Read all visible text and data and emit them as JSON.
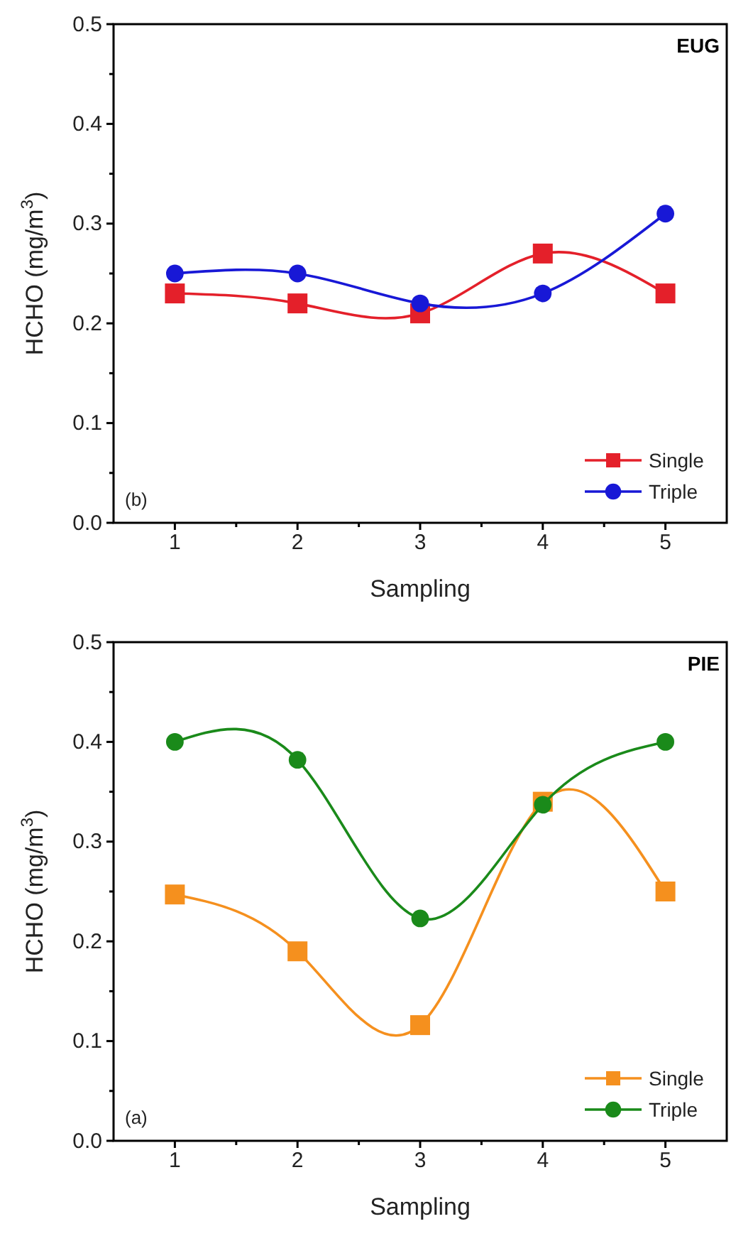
{
  "chart_data": [
    {
      "type": "line",
      "title": "EUG",
      "xlabel": "Sampling",
      "ylabel": "HCHO (mg/m$^{3}$)",
      "annotations": [
        "(b)"
      ],
      "x": [
        1,
        2,
        3,
        4,
        5
      ],
      "xlim": [
        0.5,
        5.5
      ],
      "xticks": [
        1,
        {
          "value": 1.5,
          "label": null
        },
        2,
        {
          "value": 2.5,
          "label": null
        },
        3,
        {
          "value": 3.5,
          "label": null
        },
        4,
        {
          "value": 4.5,
          "label": null
        },
        5
      ],
      "ylim": [
        0,
        0.5
      ],
      "yticks": [
        {
          "value": 0,
          "label": "0.0"
        },
        {
          "value": 0.05,
          "label": null
        },
        0.1,
        {
          "value": 0.15,
          "label": null
        },
        0.2,
        {
          "value": 0.25,
          "label": null
        },
        0.3,
        {
          "value": 0.35,
          "label": null
        },
        0.4,
        {
          "value": 0.45,
          "label": null
        },
        0.5
      ],
      "legend": "bottom right",
      "grid": false,
      "series": [
        {
          "name": "Single",
          "color": "#e4202a",
          "marker": "square",
          "values": [
            0.23,
            0.22,
            0.21,
            0.27,
            0.23
          ]
        },
        {
          "name": "Triple",
          "color": "#1818d6",
          "marker": "circle",
          "values": [
            0.25,
            0.25,
            0.22,
            0.23,
            0.31
          ]
        }
      ]
    },
    {
      "type": "line",
      "title": "PIE",
      "xlabel": "Sampling",
      "ylabel": "HCHO (mg/m$^{3}$)",
      "annotations": [
        "(a)"
      ],
      "x": [
        1,
        2,
        3,
        4,
        5
      ],
      "xlim": [
        0.5,
        5.5
      ],
      "xticks": [
        1,
        {
          "value": 1.5,
          "label": null
        },
        2,
        {
          "value": 2.5,
          "label": null
        },
        3,
        {
          "value": 3.5,
          "label": null
        },
        4,
        {
          "value": 4.5,
          "label": null
        },
        5
      ],
      "ylim": [
        0,
        0.5
      ],
      "yticks": [
        {
          "value": 0,
          "label": "0.0"
        },
        {
          "value": 0.05,
          "label": null
        },
        0.1,
        {
          "value": 0.15,
          "label": null
        },
        0.2,
        {
          "value": 0.25,
          "label": null
        },
        0.3,
        {
          "value": 0.35,
          "label": null
        },
        0.4,
        {
          "value": 0.45,
          "label": null
        },
        0.5
      ],
      "legend": "bottom right",
      "grid": false,
      "series": [
        {
          "name": "Single",
          "color": "#f5901e",
          "marker": "square",
          "values": [
            0.247,
            0.19,
            0.116,
            0.34,
            0.25
          ]
        },
        {
          "name": "Triple",
          "color": "#1a8a1a",
          "marker": "circle",
          "values": [
            0.4,
            0.382,
            0.223,
            0.337,
            0.4
          ]
        }
      ]
    }
  ]
}
